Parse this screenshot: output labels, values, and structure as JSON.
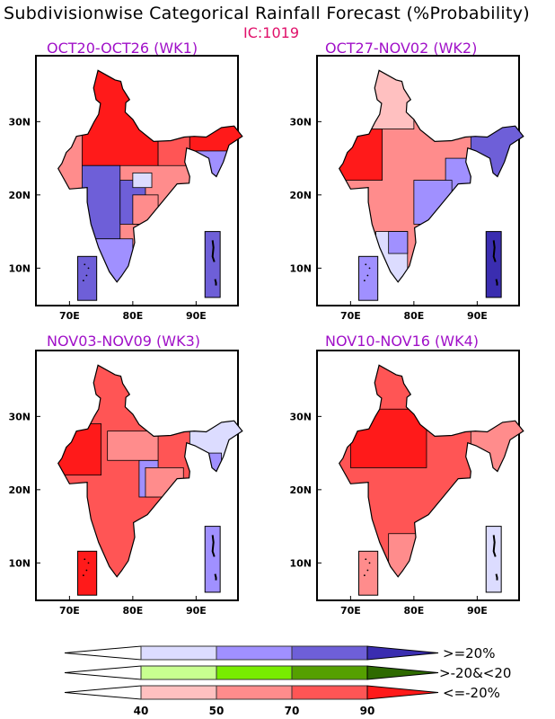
{
  "title": "Subdivisionwise Categorical Rainfall Forecast (%Probability)",
  "ic": "IC:1019",
  "colors": {
    "B1": "#dcdcff",
    "B2": "#a090ff",
    "B3": "#6e5fd8",
    "B4": "#3a2db0",
    "G1": "#c8ff90",
    "G2": "#78ec00",
    "G3": "#55a000",
    "G4": "#2e6a00",
    "R1": "#ffc0c0",
    "R2": "#ff8c8c",
    "R3": "#ff5555",
    "R4": "#ff1a1a"
  },
  "axes": {
    "lat_ticks": [
      "30N",
      "20N",
      "10N"
    ],
    "lon_ticks": [
      "70E",
      "80E",
      "90E"
    ]
  },
  "panels": [
    {
      "title": "OCT20-OCT26 (WK1)",
      "base": "R2",
      "lakshadweep": "B3",
      "andaman": "B3",
      "regions": [
        [
          72,
          24,
          84,
          38,
          "R4"
        ],
        [
          84,
          24,
          89,
          28,
          "R3"
        ],
        [
          89,
          20,
          98,
          30,
          "B2"
        ],
        [
          89,
          26,
          98,
          30,
          "R4"
        ],
        [
          72,
          14,
          78,
          24,
          "B3"
        ],
        [
          78,
          16,
          82,
          22,
          "B3"
        ],
        [
          80,
          21,
          83,
          23,
          "B1"
        ],
        [
          74,
          7,
          80,
          14,
          "B2"
        ],
        [
          80,
          16,
          84,
          20,
          "R2"
        ]
      ]
    },
    {
      "title": "OCT27-NOV02 (WK2)",
      "base": "R2",
      "lakshadweep": "B2",
      "andaman": "B4",
      "regions": [
        [
          68,
          22,
          75,
          29,
          "R4"
        ],
        [
          72,
          29,
          80,
          38,
          "R1"
        ],
        [
          85,
          20,
          89,
          25,
          "B2"
        ],
        [
          89,
          22,
          98,
          30,
          "B3"
        ],
        [
          80,
          16,
          86,
          22,
          "B2"
        ],
        [
          74,
          7,
          79,
          15,
          "B1"
        ],
        [
          76,
          12,
          79,
          15,
          "B2"
        ]
      ]
    },
    {
      "title": "NOV03-NOV09 (WK3)",
      "base": "R3",
      "lakshadweep": "R4",
      "andaman": "B2",
      "regions": [
        [
          68,
          22,
          75,
          29,
          "R4"
        ],
        [
          89,
          24,
          98,
          30,
          "B1"
        ],
        [
          89,
          21,
          94,
          25,
          "B2"
        ],
        [
          81,
          19,
          84,
          24,
          "B2"
        ],
        [
          82,
          19,
          88,
          23,
          "R2"
        ],
        [
          76,
          24,
          84,
          28,
          "R2"
        ]
      ]
    },
    {
      "title": "NOV10-NOV16 (WK4)",
      "base": "R3",
      "lakshadweep": "R2",
      "andaman": "B1",
      "regions": [
        [
          70,
          23,
          82,
          31,
          "R4"
        ],
        [
          89,
          22,
          98,
          30,
          "R2"
        ],
        [
          76,
          8,
          81,
          14,
          "R2"
        ]
      ]
    }
  ],
  "legend": {
    "rows": [
      {
        "label": ">=20%",
        "cats": [
          "B1",
          "B2",
          "B3",
          "B4"
        ]
      },
      {
        "label": ">-20&<20",
        "cats": [
          "G1",
          "G2",
          "G3",
          "G4"
        ]
      },
      {
        "label": "<=-20%",
        "cats": [
          "R1",
          "R2",
          "R3",
          "R4"
        ]
      }
    ],
    "ticks": [
      "40",
      "50",
      "70",
      "90"
    ]
  }
}
